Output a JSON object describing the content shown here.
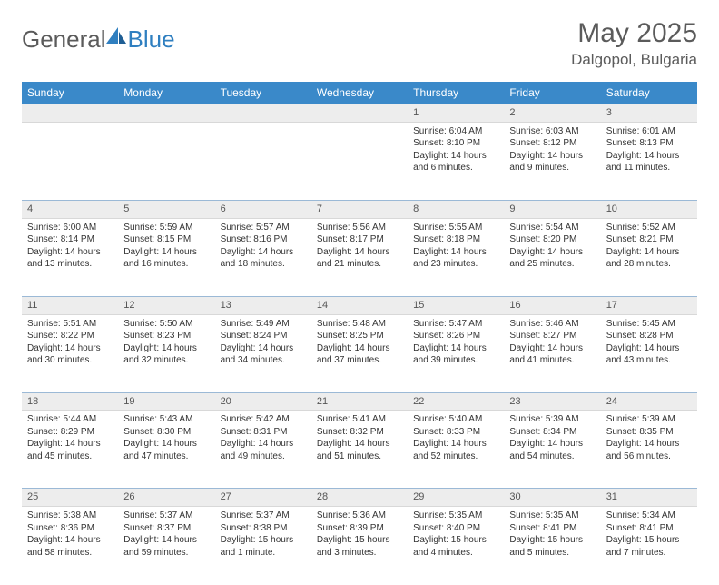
{
  "brand": {
    "general": "General",
    "blue": "Blue"
  },
  "title": "May 2025",
  "location": "Dalgopol, Bulgaria",
  "colors": {
    "header_bg": "#3a89c9",
    "header_fg": "#ffffff",
    "daynum_bg": "#ededed",
    "daynum_border_top": "#9bb9d6",
    "text": "#333333",
    "logo_gray": "#5b5b5b",
    "logo_blue": "#2f7fc0"
  },
  "weekdays": [
    "Sunday",
    "Monday",
    "Tuesday",
    "Wednesday",
    "Thursday",
    "Friday",
    "Saturday"
  ],
  "weeks": [
    {
      "days": [
        {
          "num": "",
          "lines": []
        },
        {
          "num": "",
          "lines": []
        },
        {
          "num": "",
          "lines": []
        },
        {
          "num": "",
          "lines": []
        },
        {
          "num": "1",
          "lines": [
            "Sunrise: 6:04 AM",
            "Sunset: 8:10 PM",
            "Daylight: 14 hours",
            "and 6 minutes."
          ]
        },
        {
          "num": "2",
          "lines": [
            "Sunrise: 6:03 AM",
            "Sunset: 8:12 PM",
            "Daylight: 14 hours",
            "and 9 minutes."
          ]
        },
        {
          "num": "3",
          "lines": [
            "Sunrise: 6:01 AM",
            "Sunset: 8:13 PM",
            "Daylight: 14 hours",
            "and 11 minutes."
          ]
        }
      ]
    },
    {
      "days": [
        {
          "num": "4",
          "lines": [
            "Sunrise: 6:00 AM",
            "Sunset: 8:14 PM",
            "Daylight: 14 hours",
            "and 13 minutes."
          ]
        },
        {
          "num": "5",
          "lines": [
            "Sunrise: 5:59 AM",
            "Sunset: 8:15 PM",
            "Daylight: 14 hours",
            "and 16 minutes."
          ]
        },
        {
          "num": "6",
          "lines": [
            "Sunrise: 5:57 AM",
            "Sunset: 8:16 PM",
            "Daylight: 14 hours",
            "and 18 minutes."
          ]
        },
        {
          "num": "7",
          "lines": [
            "Sunrise: 5:56 AM",
            "Sunset: 8:17 PM",
            "Daylight: 14 hours",
            "and 21 minutes."
          ]
        },
        {
          "num": "8",
          "lines": [
            "Sunrise: 5:55 AM",
            "Sunset: 8:18 PM",
            "Daylight: 14 hours",
            "and 23 minutes."
          ]
        },
        {
          "num": "9",
          "lines": [
            "Sunrise: 5:54 AM",
            "Sunset: 8:20 PM",
            "Daylight: 14 hours",
            "and 25 minutes."
          ]
        },
        {
          "num": "10",
          "lines": [
            "Sunrise: 5:52 AM",
            "Sunset: 8:21 PM",
            "Daylight: 14 hours",
            "and 28 minutes."
          ]
        }
      ]
    },
    {
      "days": [
        {
          "num": "11",
          "lines": [
            "Sunrise: 5:51 AM",
            "Sunset: 8:22 PM",
            "Daylight: 14 hours",
            "and 30 minutes."
          ]
        },
        {
          "num": "12",
          "lines": [
            "Sunrise: 5:50 AM",
            "Sunset: 8:23 PM",
            "Daylight: 14 hours",
            "and 32 minutes."
          ]
        },
        {
          "num": "13",
          "lines": [
            "Sunrise: 5:49 AM",
            "Sunset: 8:24 PM",
            "Daylight: 14 hours",
            "and 34 minutes."
          ]
        },
        {
          "num": "14",
          "lines": [
            "Sunrise: 5:48 AM",
            "Sunset: 8:25 PM",
            "Daylight: 14 hours",
            "and 37 minutes."
          ]
        },
        {
          "num": "15",
          "lines": [
            "Sunrise: 5:47 AM",
            "Sunset: 8:26 PM",
            "Daylight: 14 hours",
            "and 39 minutes."
          ]
        },
        {
          "num": "16",
          "lines": [
            "Sunrise: 5:46 AM",
            "Sunset: 8:27 PM",
            "Daylight: 14 hours",
            "and 41 minutes."
          ]
        },
        {
          "num": "17",
          "lines": [
            "Sunrise: 5:45 AM",
            "Sunset: 8:28 PM",
            "Daylight: 14 hours",
            "and 43 minutes."
          ]
        }
      ]
    },
    {
      "days": [
        {
          "num": "18",
          "lines": [
            "Sunrise: 5:44 AM",
            "Sunset: 8:29 PM",
            "Daylight: 14 hours",
            "and 45 minutes."
          ]
        },
        {
          "num": "19",
          "lines": [
            "Sunrise: 5:43 AM",
            "Sunset: 8:30 PM",
            "Daylight: 14 hours",
            "and 47 minutes."
          ]
        },
        {
          "num": "20",
          "lines": [
            "Sunrise: 5:42 AM",
            "Sunset: 8:31 PM",
            "Daylight: 14 hours",
            "and 49 minutes."
          ]
        },
        {
          "num": "21",
          "lines": [
            "Sunrise: 5:41 AM",
            "Sunset: 8:32 PM",
            "Daylight: 14 hours",
            "and 51 minutes."
          ]
        },
        {
          "num": "22",
          "lines": [
            "Sunrise: 5:40 AM",
            "Sunset: 8:33 PM",
            "Daylight: 14 hours",
            "and 52 minutes."
          ]
        },
        {
          "num": "23",
          "lines": [
            "Sunrise: 5:39 AM",
            "Sunset: 8:34 PM",
            "Daylight: 14 hours",
            "and 54 minutes."
          ]
        },
        {
          "num": "24",
          "lines": [
            "Sunrise: 5:39 AM",
            "Sunset: 8:35 PM",
            "Daylight: 14 hours",
            "and 56 minutes."
          ]
        }
      ]
    },
    {
      "days": [
        {
          "num": "25",
          "lines": [
            "Sunrise: 5:38 AM",
            "Sunset: 8:36 PM",
            "Daylight: 14 hours",
            "and 58 minutes."
          ]
        },
        {
          "num": "26",
          "lines": [
            "Sunrise: 5:37 AM",
            "Sunset: 8:37 PM",
            "Daylight: 14 hours",
            "and 59 minutes."
          ]
        },
        {
          "num": "27",
          "lines": [
            "Sunrise: 5:37 AM",
            "Sunset: 8:38 PM",
            "Daylight: 15 hours",
            "and 1 minute."
          ]
        },
        {
          "num": "28",
          "lines": [
            "Sunrise: 5:36 AM",
            "Sunset: 8:39 PM",
            "Daylight: 15 hours",
            "and 3 minutes."
          ]
        },
        {
          "num": "29",
          "lines": [
            "Sunrise: 5:35 AM",
            "Sunset: 8:40 PM",
            "Daylight: 15 hours",
            "and 4 minutes."
          ]
        },
        {
          "num": "30",
          "lines": [
            "Sunrise: 5:35 AM",
            "Sunset: 8:41 PM",
            "Daylight: 15 hours",
            "and 5 minutes."
          ]
        },
        {
          "num": "31",
          "lines": [
            "Sunrise: 5:34 AM",
            "Sunset: 8:41 PM",
            "Daylight: 15 hours",
            "and 7 minutes."
          ]
        }
      ]
    }
  ]
}
